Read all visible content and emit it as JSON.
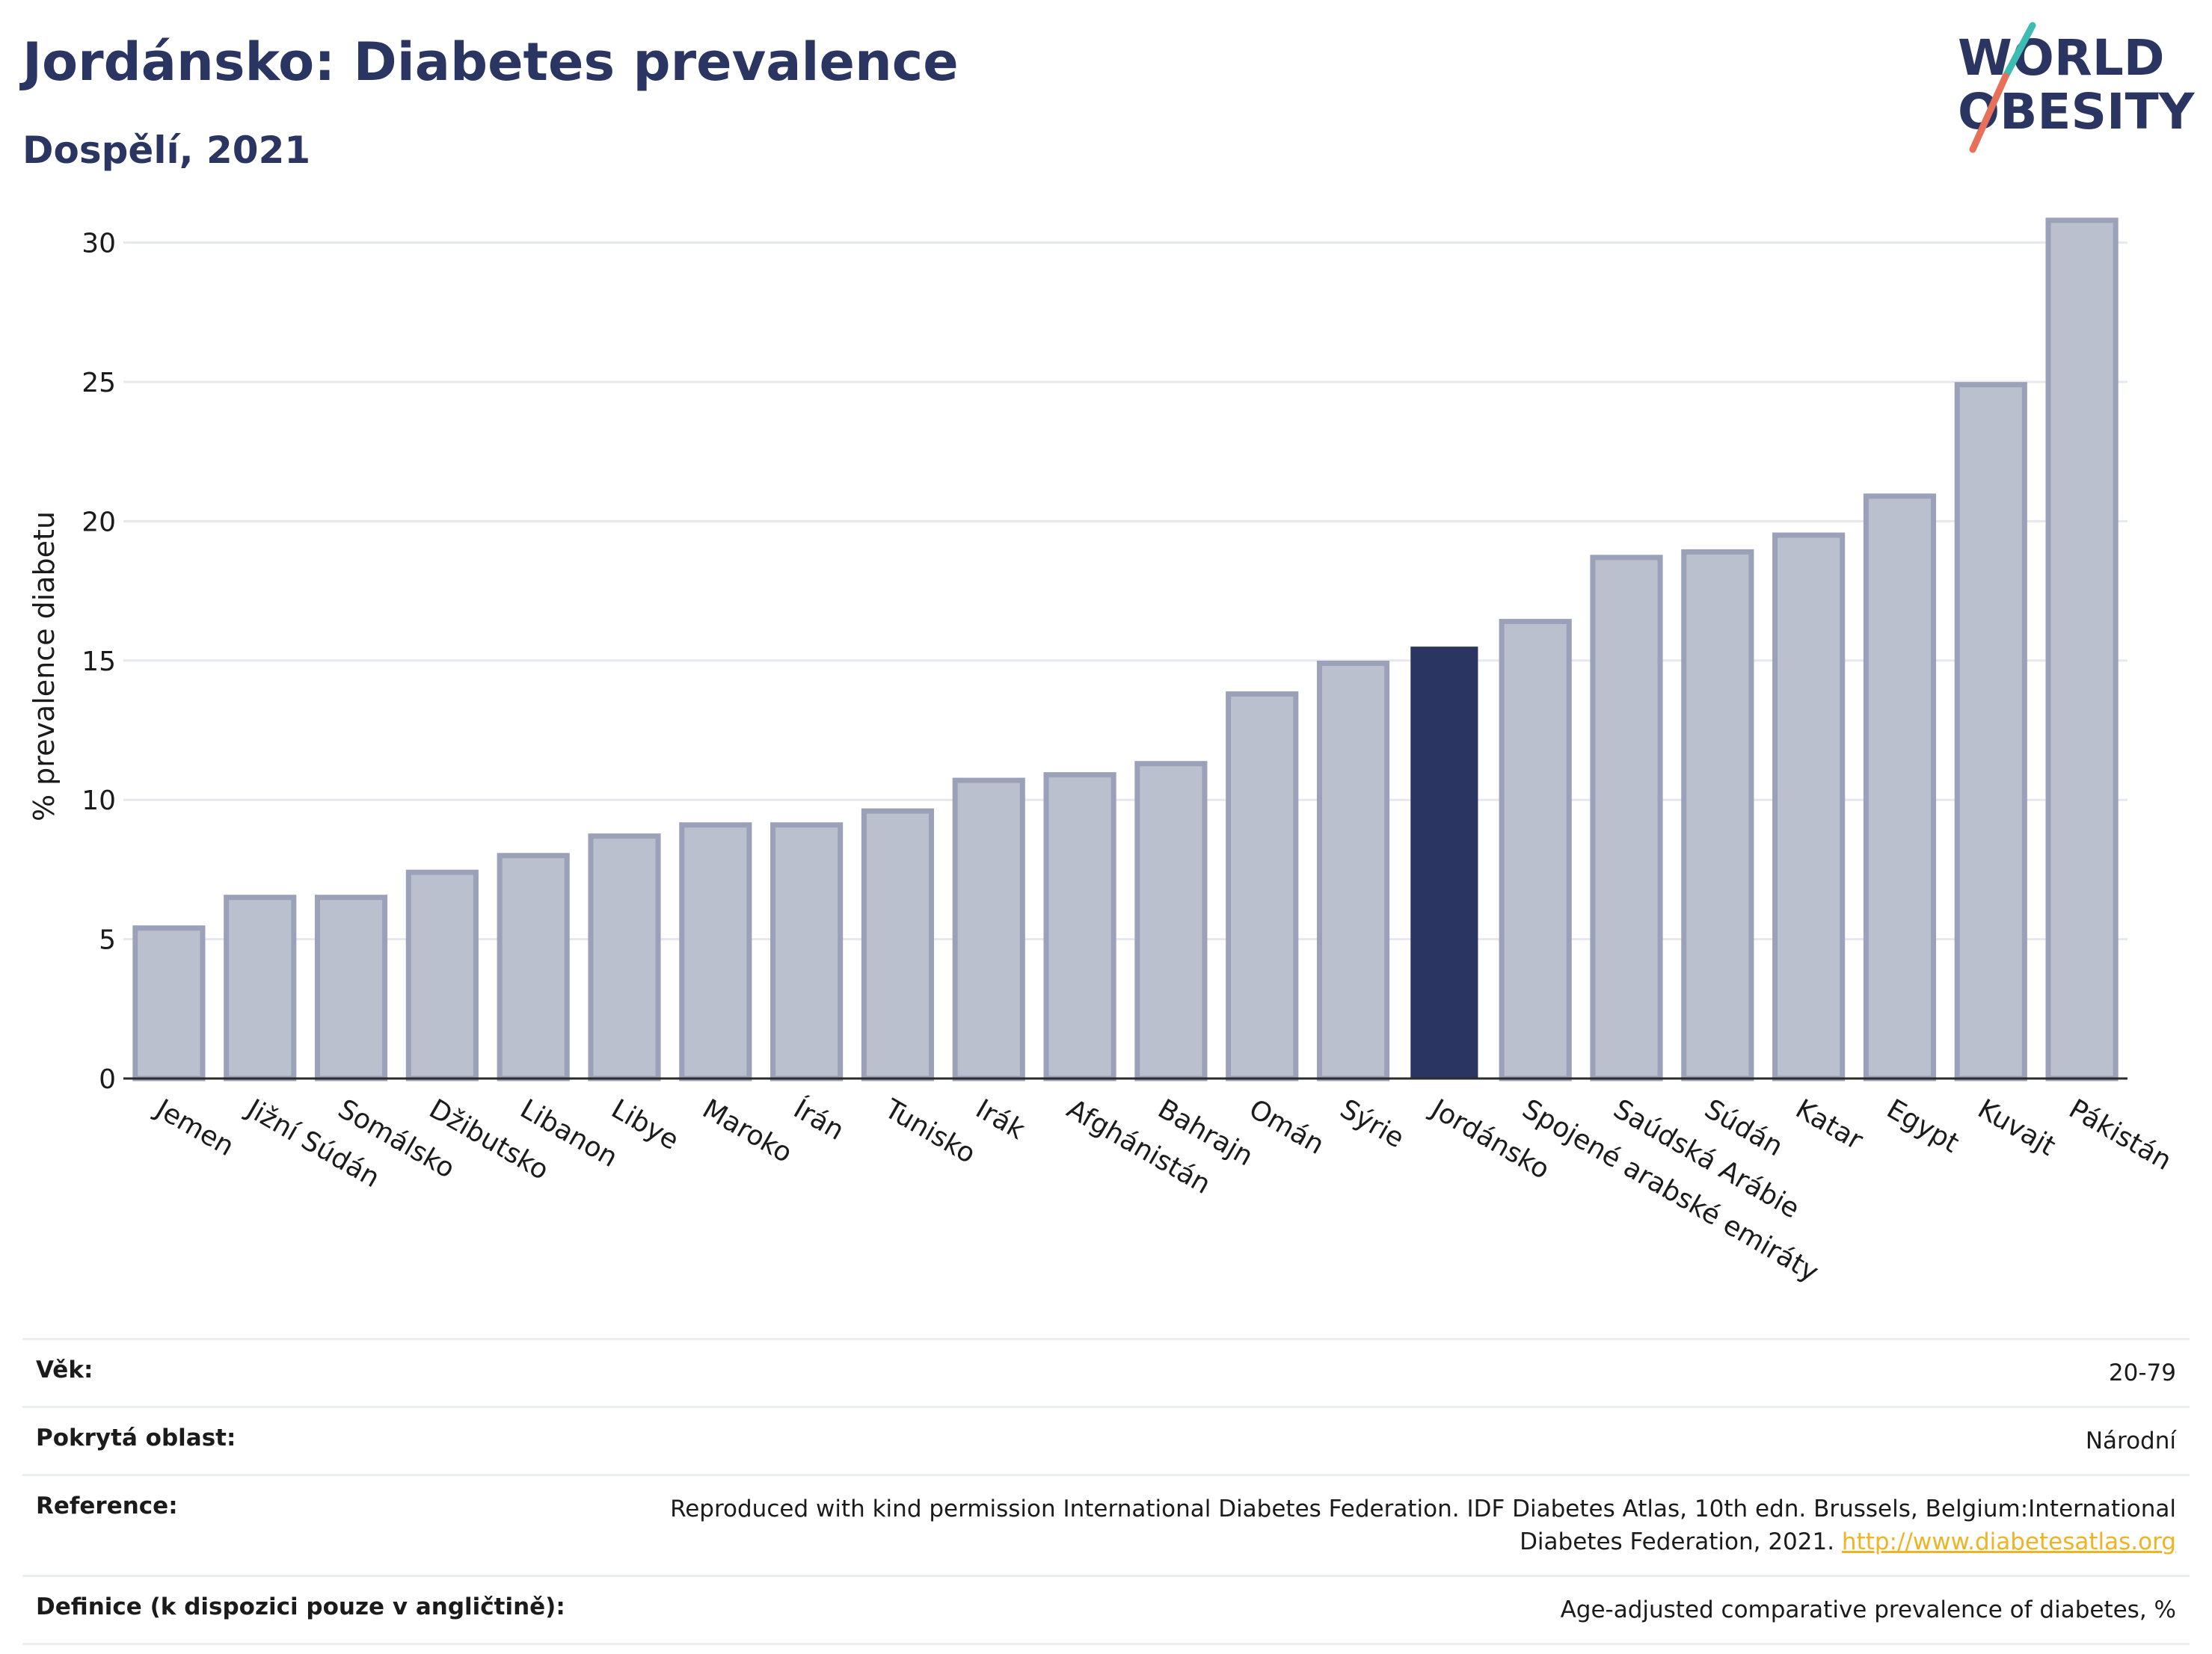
{
  "header": {
    "title": "Jordánsko: Diabetes prevalence",
    "subtitle": "Dospělí, 2021"
  },
  "logo": {
    "line1": "WORLD",
    "line2": "OBESITY",
    "accent_teal": "#3dbdb1",
    "accent_coral": "#e8705b",
    "text_color": "#2a3561"
  },
  "chart_data": {
    "type": "bar",
    "ylabel": "% prevalence diabetu",
    "ylim": [
      0,
      32
    ],
    "yticks": [
      0,
      5,
      10,
      15,
      20,
      25,
      30
    ],
    "grid": true,
    "categories": [
      "Jemen",
      "Jižní Súdán",
      "Somálsko",
      "Džibutsko",
      "Libanon",
      "Libye",
      "Maroko",
      "Írán",
      "Tunisko",
      "Irák",
      "Afghánistán",
      "Bahrajn",
      "Omán",
      "Sýrie",
      "Jordánsko",
      "Spojené arabské emiráty",
      "Saúdská Arábie",
      "Súdán",
      "Katar",
      "Egypt",
      "Kuvajt",
      "Pákistán"
    ],
    "values": [
      5.4,
      6.5,
      6.5,
      7.4,
      8.0,
      8.7,
      9.1,
      9.1,
      9.6,
      10.7,
      10.9,
      11.3,
      13.8,
      14.9,
      15.5,
      16.4,
      18.7,
      18.9,
      19.5,
      20.9,
      24.9,
      30.8
    ],
    "highlight": "Jordánsko",
    "highlight_color": "#2a3561",
    "bar_fill": "#bbc0ce",
    "bar_stroke": "#9aa1b9"
  },
  "info": {
    "rows": [
      {
        "label": "Věk:",
        "value": "20-79"
      },
      {
        "label": "Pokrytá oblast:",
        "value": "Národní"
      },
      {
        "label": "Reference:",
        "value": "Reproduced with kind permission International Diabetes Federation.  IDF Diabetes Atlas, 10th edn. Brussels, Belgium:International",
        "value2": "Diabetes Federation, 2021. ",
        "link": "http://www.diabetesatlas.org"
      },
      {
        "label": "Definice (k dispozici pouze v angličtině):",
        "value": "Age-adjusted comparative prevalence of diabetes, %"
      }
    ]
  }
}
